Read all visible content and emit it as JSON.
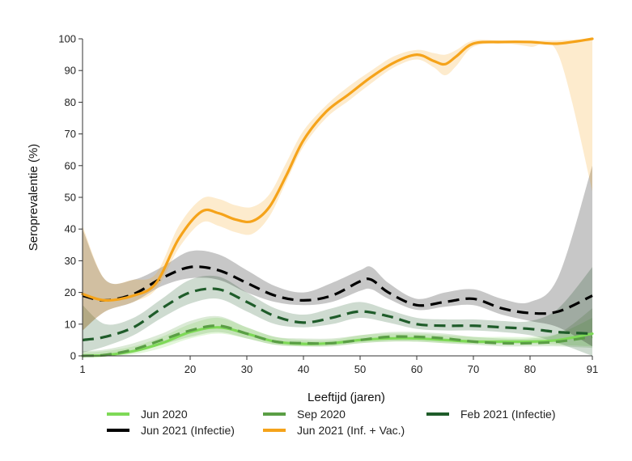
{
  "chart_data": {
    "type": "line",
    "title": "",
    "xlabel": "Leeftijd (jaren)",
    "ylabel": "Seroprevalentie (%)",
    "xlim": [
      1,
      91
    ],
    "ylim": [
      0,
      100
    ],
    "x_ticks": [
      1,
      20,
      30,
      40,
      50,
      60,
      70,
      80,
      91
    ],
    "y_ticks": [
      0,
      10,
      20,
      30,
      40,
      50,
      60,
      70,
      80,
      90,
      100
    ],
    "grid": false,
    "legend_position": "bottom",
    "series": [
      {
        "name": "Jun 2020",
        "color": "#7ed957",
        "dashed": false,
        "x": [
          1,
          5,
          10,
          15,
          20,
          25,
          30,
          35,
          40,
          45,
          50,
          55,
          60,
          65,
          70,
          75,
          80,
          85,
          91
        ],
        "y": [
          0,
          0.2,
          1.5,
          4,
          7.5,
          9,
          7,
          4.5,
          3.8,
          4,
          5,
          5.5,
          5.5,
          5,
          4.5,
          4.5,
          4.5,
          5,
          7
        ],
        "lower": [
          0,
          0,
          0.5,
          2.5,
          5.5,
          7,
          5.5,
          3.5,
          3,
          3.2,
          4,
          4.5,
          4.5,
          4,
          3.8,
          3.8,
          3.8,
          3.5,
          3
        ],
        "upper": [
          1,
          1.5,
          3,
          6,
          10,
          12,
          9,
          6,
          5,
          5,
          6.5,
          7,
          7,
          6.5,
          6,
          6,
          6,
          7,
          12
        ]
      },
      {
        "name": "Sep 2020",
        "color": "#5a9e45",
        "dashed": true,
        "x": [
          1,
          5,
          10,
          15,
          20,
          25,
          30,
          35,
          40,
          45,
          50,
          55,
          60,
          65,
          70,
          75,
          80,
          85,
          91
        ],
        "y": [
          0,
          0.3,
          2,
          5,
          8,
          9.5,
          7,
          4.5,
          4,
          4,
          5,
          6,
          6,
          5.5,
          4.5,
          4,
          4,
          4.5,
          6
        ],
        "lower": [
          0,
          0,
          1,
          3.5,
          6,
          7.5,
          5.5,
          3.5,
          3,
          3,
          4,
          4.5,
          4.5,
          4,
          3.5,
          3,
          3,
          3,
          2.5
        ],
        "upper": [
          1.5,
          2,
          4,
          7,
          11,
          12.5,
          9,
          6,
          5.5,
          5.5,
          6.5,
          7.5,
          7.5,
          7,
          6,
          5.5,
          5.5,
          7,
          15
        ]
      },
      {
        "name": "Feb 2021 (Infectie)",
        "color": "#1f5c2a",
        "dashed": true,
        "x": [
          1,
          5,
          10,
          15,
          20,
          25,
          30,
          35,
          40,
          45,
          50,
          55,
          60,
          65,
          70,
          75,
          80,
          85,
          91
        ],
        "y": [
          5,
          6,
          9,
          15,
          20,
          21,
          17,
          12.5,
          10.5,
          12,
          14,
          12.5,
          10,
          9.5,
          9.5,
          9,
          8.5,
          7.5,
          7
        ],
        "lower": [
          1,
          3,
          6.5,
          12,
          16.5,
          18,
          14,
          10,
          9,
          10,
          12,
          10.5,
          8.5,
          8,
          8,
          7.5,
          6.5,
          4,
          0
        ],
        "upper": [
          16,
          10,
          12,
          18,
          24,
          25,
          20,
          15,
          13,
          15,
          17,
          14.5,
          12,
          11.5,
          11.5,
          11,
          11,
          15,
          28
        ]
      },
      {
        "name": "Jun 2021 (Infectie)",
        "color": "#000000",
        "dashed": true,
        "x": [
          1,
          5,
          10,
          15,
          20,
          25,
          30,
          35,
          40,
          45,
          50,
          52,
          55,
          60,
          65,
          70,
          75,
          80,
          85,
          91
        ],
        "y": [
          19,
          17.5,
          19.5,
          24.5,
          28,
          27,
          23,
          19,
          17.5,
          19,
          23.5,
          24,
          20,
          16,
          17,
          18,
          15,
          13.5,
          14,
          19
        ],
        "lower": [
          8,
          14,
          17,
          22,
          24.5,
          24,
          20,
          17,
          16,
          17,
          20.5,
          21,
          18,
          14.5,
          15.5,
          16,
          13,
          11,
          9,
          3
        ],
        "upper": [
          40,
          24,
          24,
          28,
          33,
          32,
          27,
          22,
          20,
          23,
          27,
          28,
          23,
          18,
          20,
          21,
          18,
          17,
          25,
          60
        ]
      },
      {
        "name": "Jun 2021 (Inf. + Vac.)",
        "color": "#f5a31a",
        "dashed": false,
        "x": [
          1,
          5,
          10,
          14,
          18,
          22,
          25,
          28,
          31,
          34,
          37,
          40,
          44,
          48,
          52,
          56,
          60,
          63,
          65,
          67,
          70,
          75,
          80,
          85,
          91
        ],
        "y": [
          19.5,
          17.5,
          19,
          23,
          37,
          45.5,
          45,
          43,
          42.5,
          47,
          57,
          68,
          77,
          82.5,
          88,
          92.5,
          95,
          93,
          92,
          94.5,
          98.5,
          99,
          99,
          98.5,
          100
        ],
        "lower": [
          8,
          14,
          17,
          21,
          34,
          42,
          41,
          39,
          38.5,
          44,
          55,
          66,
          75,
          80.5,
          86,
          91,
          93.5,
          91,
          88.5,
          91.5,
          97.5,
          98.5,
          97.5,
          95,
          52
        ],
        "upper": [
          41,
          24,
          24,
          26,
          41,
          49.5,
          49.5,
          47.5,
          47,
          51,
          61,
          71,
          79,
          85,
          90,
          94.5,
          96.5,
          95.5,
          95,
          96.5,
          99.5,
          99.5,
          99.5,
          99.5,
          100
        ]
      }
    ]
  }
}
